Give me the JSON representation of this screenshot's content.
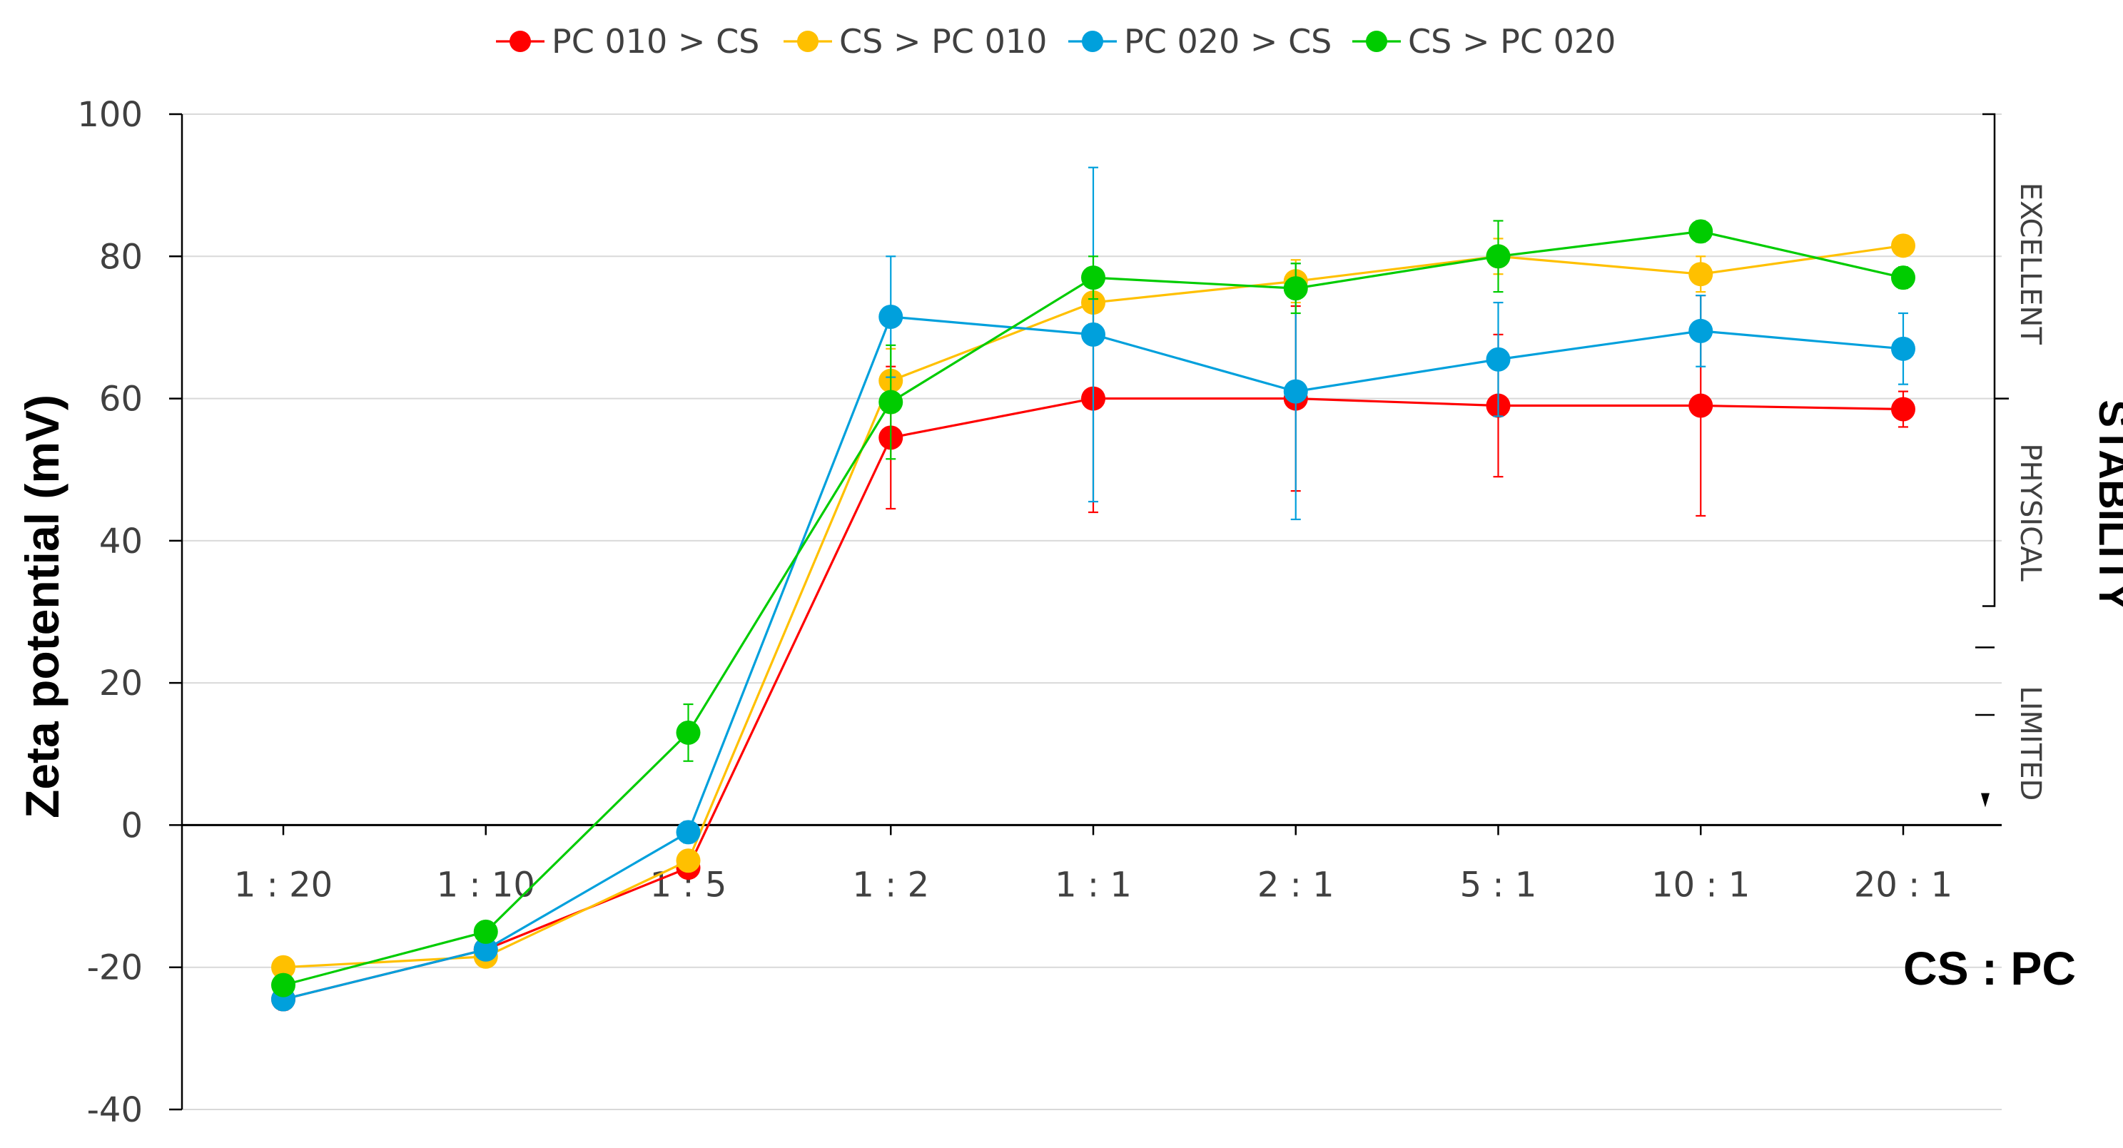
{
  "chart_data": {
    "type": "line",
    "title": "",
    "xlabel": "CS : PC",
    "ylabel": "Zeta potential (mV)",
    "ylim": [
      -40,
      100
    ],
    "yticks": [
      -40,
      -20,
      0,
      20,
      40,
      60,
      80,
      100
    ],
    "grid": true,
    "legend": "top",
    "categories": [
      "1 : 20",
      "1 : 10",
      "1 : 5",
      "1 : 2",
      "1 : 1",
      "2 : 1",
      "5 : 1",
      "10 : 1",
      "20 : 1"
    ],
    "series": [
      {
        "name": "PC 010 > CS",
        "color": "#ff0000",
        "values": [
          -24.5,
          -17.5,
          -6,
          54.5,
          60,
          60,
          59,
          59,
          58.5
        ],
        "errors": [
          1.5,
          1,
          1,
          10,
          16,
          13,
          10,
          15.5,
          2.5
        ]
      },
      {
        "name": "CS > PC 010",
        "color": "#ffc000",
        "values": [
          -20,
          -18.5,
          -5,
          62.5,
          73.5,
          76.5,
          80,
          77.5,
          81.5
        ],
        "errors": [
          1,
          1,
          1,
          4.5,
          3,
          3,
          2.5,
          2.5,
          1
        ]
      },
      {
        "name": "PC 020 > CS",
        "color": "#00a0dc",
        "values": [
          -24.5,
          -17.5,
          -1,
          71.5,
          69,
          61,
          65.5,
          69.5,
          67
        ],
        "errors": [
          1,
          1,
          1.5,
          8.5,
          23.5,
          18,
          8,
          5,
          5
        ]
      },
      {
        "name": "CS > PC 020",
        "color": "#00cc00",
        "values": [
          -22.5,
          -15,
          13,
          59.5,
          77,
          75.5,
          80,
          83.5,
          77
        ],
        "errors": [
          1,
          1,
          4,
          8,
          3,
          3.5,
          5,
          1.5,
          1.5
        ]
      }
    ],
    "stability": {
      "title": "STABILITY",
      "bands": [
        {
          "label": "EXCELLENT",
          "from": 60,
          "to": 100
        },
        {
          "label": "PHYSICAL",
          "from": 30,
          "to": 60
        },
        {
          "label": "LIMITED",
          "from": 0,
          "to": 25
        }
      ]
    }
  }
}
